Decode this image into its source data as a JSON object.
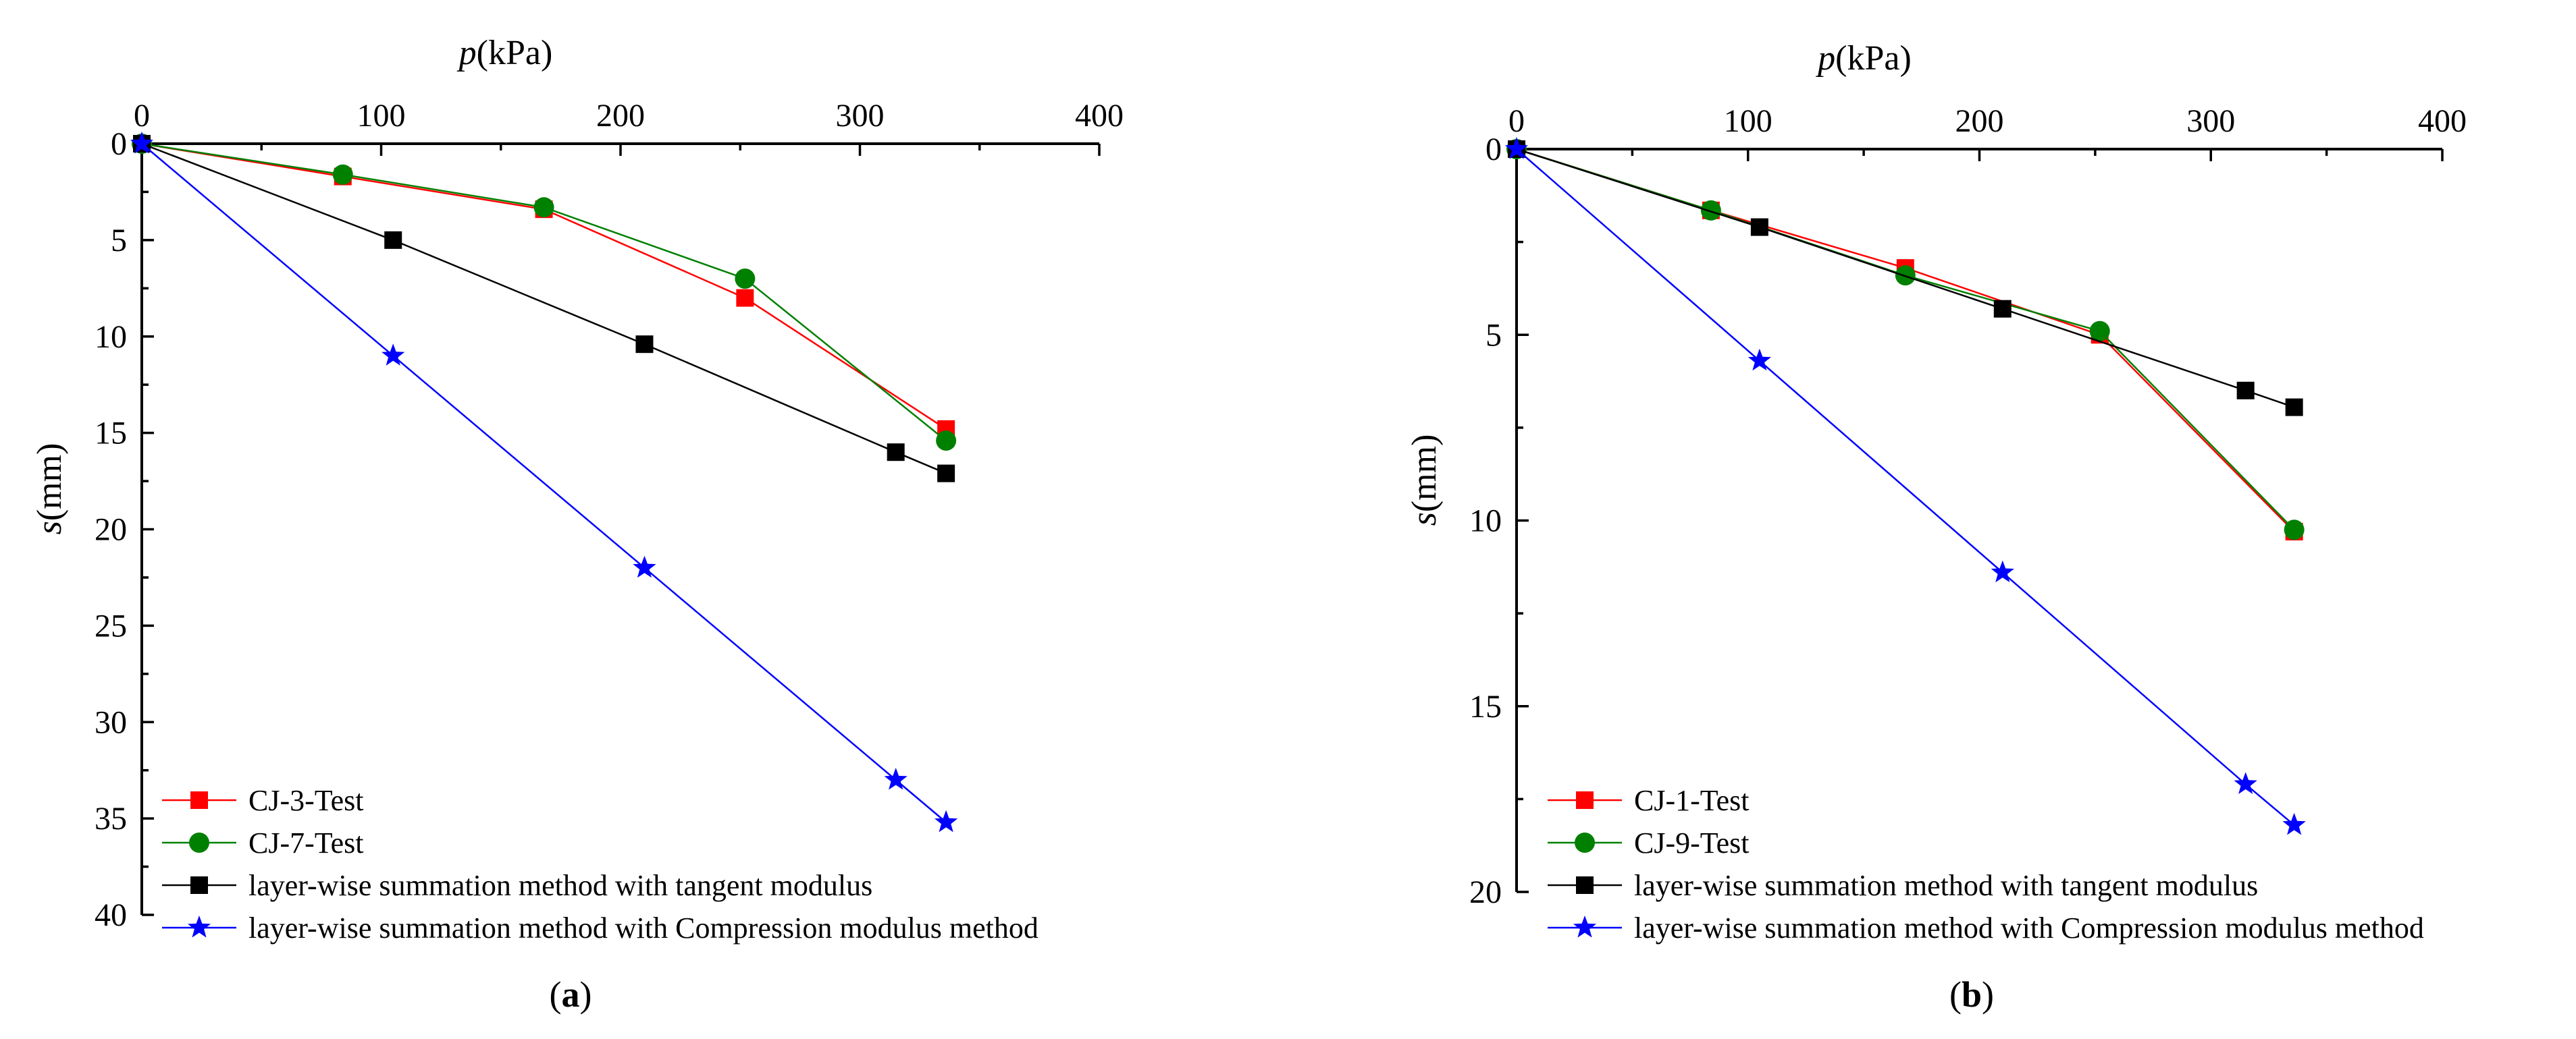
{
  "chart_data": [
    {
      "type": "line",
      "panel_label": "a",
      "xlabel": "p",
      "xlabel_unit": "(kPa)",
      "ylabel": "s",
      "ylabel_unit": "(mm)",
      "xlim": [
        0,
        400
      ],
      "ylim": [
        0,
        40
      ],
      "x_ticks": [
        0,
        100,
        200,
        300,
        400
      ],
      "y_ticks": [
        0,
        5,
        10,
        15,
        20,
        25,
        30,
        35,
        40
      ],
      "x_axis_position": "top",
      "y_axis_inverted": true,
      "legend_position": "bottom-left",
      "series": [
        {
          "name": "CJ-3-Test",
          "color": "#ff0000",
          "marker": "square",
          "x": [
            0,
            84,
            168,
            252,
            336
          ],
          "y": [
            0,
            1.7,
            3.4,
            8.0,
            14.8
          ]
        },
        {
          "name": "CJ-7-Test",
          "color": "#008000",
          "marker": "circle",
          "x": [
            0,
            84,
            168,
            252,
            336
          ],
          "y": [
            0,
            1.6,
            3.3,
            7.0,
            15.4
          ]
        },
        {
          "name": "layer-wise summation method with tangent modulus",
          "color": "#000000",
          "marker": "square",
          "x": [
            0,
            105,
            210,
            315,
            336
          ],
          "y": [
            0,
            5.0,
            10.4,
            16.0,
            17.1
          ]
        },
        {
          "name": "layer-wise summation method with Compression modulus method",
          "color": "#0000ff",
          "marker": "star",
          "x": [
            0,
            105,
            210,
            315,
            336
          ],
          "y": [
            0,
            11.0,
            22.0,
            33.0,
            35.2
          ]
        }
      ]
    },
    {
      "type": "line",
      "panel_label": "b",
      "xlabel": "p",
      "xlabel_unit": "(kPa)",
      "ylabel": "s",
      "ylabel_unit": "(mm)",
      "xlim": [
        0,
        400
      ],
      "ylim": [
        0,
        20
      ],
      "x_ticks": [
        0,
        100,
        200,
        300,
        400
      ],
      "y_ticks": [
        0,
        5,
        10,
        15,
        20
      ],
      "x_axis_position": "top",
      "y_axis_inverted": true,
      "legend_position": "bottom-left",
      "series": [
        {
          "name": "CJ-1-Test",
          "color": "#ff0000",
          "marker": "square",
          "x": [
            0,
            84,
            168,
            252,
            336
          ],
          "y": [
            0,
            1.65,
            3.2,
            5.0,
            10.3
          ]
        },
        {
          "name": "CJ-9-Test",
          "color": "#008000",
          "marker": "circle",
          "x": [
            0,
            84,
            168,
            252,
            336
          ],
          "y": [
            0,
            1.65,
            3.4,
            4.9,
            10.25
          ]
        },
        {
          "name": "layer-wise summation method with tangent modulus",
          "color": "#000000",
          "marker": "square",
          "x": [
            0,
            105,
            210,
            315,
            336
          ],
          "y": [
            0,
            2.1,
            4.3,
            6.5,
            6.95
          ]
        },
        {
          "name": "layer-wise summation method with Compression modulus method",
          "color": "#0000ff",
          "marker": "star",
          "x": [
            0,
            105,
            210,
            315,
            336
          ],
          "y": [
            0,
            5.7,
            11.4,
            17.1,
            18.2
          ]
        }
      ]
    }
  ]
}
